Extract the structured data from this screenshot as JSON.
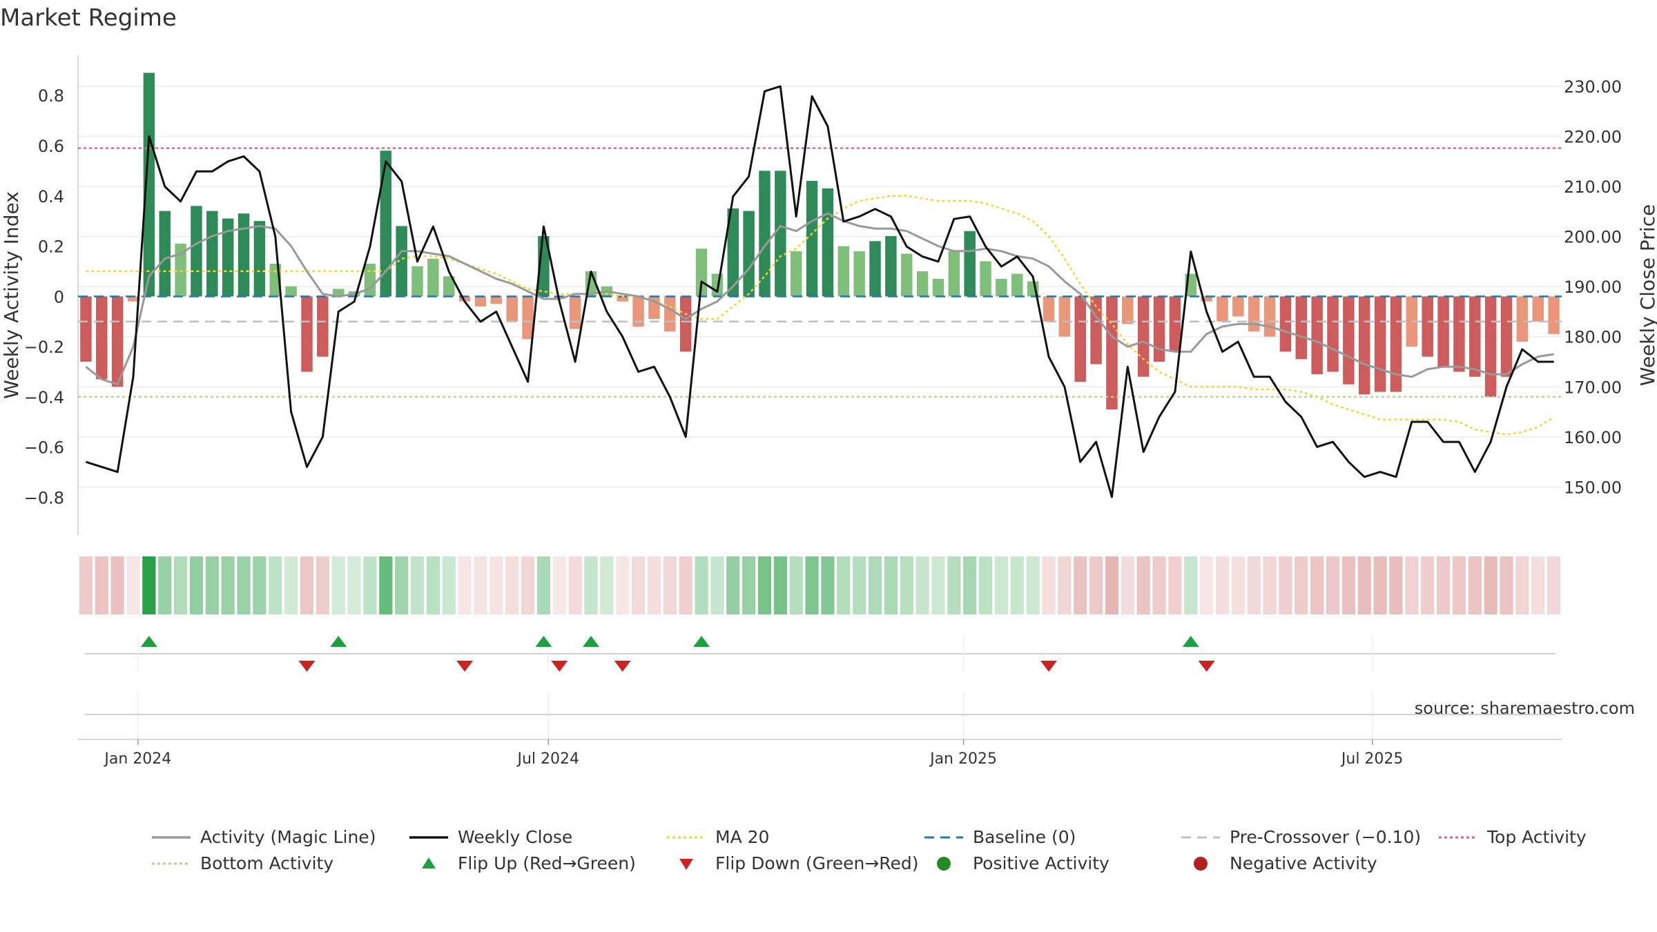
{
  "title": "Market Regime",
  "source": "source: sharemaestro.com",
  "colors": {
    "dark_green": "#2e8b57",
    "light_green": "#7fbf7b",
    "dark_red": "#cd5c5c",
    "light_red": "#e9967a",
    "magic": "#999999",
    "close": "#111111",
    "ma": "#f1d53a",
    "baseline": "#1f77b4",
    "pre": "#c0c0c0",
    "top": "#e0607e",
    "bottom": "#a8dd80",
    "flip_up": "#1fa040",
    "flip_down": "#cc2222"
  },
  "chart_data": {
    "type": "combo",
    "title": "Market Regime",
    "ylabel_left": "Weekly Activity Index",
    "ylabel_right": "Weekly Close Price",
    "y_left_range": [
      -0.95,
      0.96
    ],
    "y_right_range": [
      140.4,
      236.2
    ],
    "y_left_ticks": [
      {
        "v": 0.8,
        "label": "0.8"
      },
      {
        "v": 0.6,
        "label": "0.6"
      },
      {
        "v": 0.4,
        "label": "0.4"
      },
      {
        "v": 0.2,
        "label": "0.2"
      },
      {
        "v": 0,
        "label": "0"
      },
      {
        "v": -0.2,
        "label": "−0.2"
      },
      {
        "v": -0.4,
        "label": "−0.4"
      },
      {
        "v": -0.6,
        "label": "−0.6"
      },
      {
        "v": -0.8,
        "label": "−0.8"
      }
    ],
    "y_right_ticks": [
      {
        "v": 230,
        "label": "230.00"
      },
      {
        "v": 220,
        "label": "220.00"
      },
      {
        "v": 210,
        "label": "210.00"
      },
      {
        "v": 200,
        "label": "200.00"
      },
      {
        "v": 190,
        "label": "190.00"
      },
      {
        "v": 180,
        "label": "180.00"
      },
      {
        "v": 170,
        "label": "170.00"
      },
      {
        "v": 160,
        "label": "160.00"
      },
      {
        "v": 150,
        "label": "150.00"
      }
    ],
    "x_ticks": [
      {
        "week": 3.3,
        "label": "Jan 2024"
      },
      {
        "week": 29.3,
        "label": "Jul 2024"
      },
      {
        "week": 55.6,
        "label": "Jan 2025"
      },
      {
        "week": 81.5,
        "label": "Jul 2025"
      }
    ],
    "weeks": 94,
    "activity": [
      -0.26,
      -0.33,
      -0.36,
      -0.02,
      0.89,
      0.34,
      0.21,
      0.36,
      0.34,
      0.31,
      0.33,
      0.3,
      0.13,
      0.04,
      -0.3,
      -0.24,
      0.03,
      0.02,
      0.13,
      0.58,
      0.28,
      0.12,
      0.15,
      0.08,
      -0.02,
      -0.04,
      -0.03,
      -0.1,
      -0.17,
      0.24,
      -0.01,
      -0.13,
      0.1,
      0.04,
      -0.02,
      -0.12,
      -0.09,
      -0.14,
      -0.22,
      0.19,
      0.09,
      0.35,
      0.34,
      0.5,
      0.5,
      0.18,
      0.46,
      0.43,
      0.2,
      0.18,
      0.22,
      0.24,
      0.17,
      0.1,
      0.07,
      0.18,
      0.26,
      0.14,
      0.07,
      0.09,
      0.06,
      -0.1,
      -0.16,
      -0.34,
      -0.27,
      -0.45,
      -0.11,
      -0.32,
      -0.26,
      -0.22,
      0.09,
      -0.02,
      -0.1,
      -0.08,
      -0.14,
      -0.16,
      -0.22,
      -0.25,
      -0.31,
      -0.3,
      -0.35,
      -0.39,
      -0.38,
      -0.38,
      -0.2,
      -0.24,
      -0.28,
      -0.3,
      -0.32,
      -0.4,
      -0.32,
      -0.18,
      -0.1,
      -0.15
    ],
    "magic_line": [
      -0.28,
      -0.33,
      -0.35,
      -0.2,
      0.08,
      0.15,
      0.17,
      0.21,
      0.24,
      0.26,
      0.27,
      0.28,
      0.27,
      0.2,
      0.1,
      0.01,
      0.0,
      0.01,
      0.03,
      0.1,
      0.18,
      0.18,
      0.17,
      0.16,
      0.13,
      0.1,
      0.07,
      0.05,
      0.02,
      -0.01,
      -0.01,
      0.01,
      0.01,
      0.02,
      0.01,
      0.0,
      -0.02,
      -0.05,
      -0.09,
      -0.05,
      -0.02,
      0.04,
      0.11,
      0.2,
      0.28,
      0.26,
      0.3,
      0.33,
      0.3,
      0.28,
      0.27,
      0.27,
      0.26,
      0.23,
      0.2,
      0.18,
      0.18,
      0.19,
      0.18,
      0.16,
      0.15,
      0.12,
      0.06,
      0.01,
      -0.08,
      -0.16,
      -0.2,
      -0.18,
      -0.21,
      -0.22,
      -0.22,
      -0.15,
      -0.12,
      -0.11,
      -0.11,
      -0.12,
      -0.14,
      -0.16,
      -0.18,
      -0.21,
      -0.24,
      -0.27,
      -0.29,
      -0.31,
      -0.32,
      -0.29,
      -0.28,
      -0.28,
      -0.29,
      -0.31,
      -0.31,
      -0.27,
      -0.24,
      -0.23
    ],
    "ma20": [
      0.1,
      0.1,
      0.1,
      0.1,
      0.1,
      0.1,
      0.1,
      0.1,
      0.1,
      0.1,
      0.1,
      0.1,
      0.1,
      0.1,
      0.1,
      0.1,
      0.1,
      0.1,
      0.1,
      0.1,
      0.15,
      0.16,
      0.16,
      0.15,
      0.13,
      0.11,
      0.09,
      0.06,
      0.03,
      0.02,
      0.01,
      0.01,
      0.01,
      0.01,
      0.0,
      0.0,
      -0.02,
      -0.04,
      -0.07,
      -0.09,
      -0.09,
      -0.04,
      0.01,
      0.08,
      0.16,
      0.19,
      0.25,
      0.31,
      0.35,
      0.38,
      0.39,
      0.4,
      0.4,
      0.39,
      0.38,
      0.38,
      0.38,
      0.37,
      0.35,
      0.33,
      0.3,
      0.24,
      0.15,
      0.05,
      -0.04,
      -0.11,
      -0.19,
      -0.25,
      -0.3,
      -0.33,
      -0.36,
      -0.36,
      -0.36,
      -0.36,
      -0.37,
      -0.37,
      -0.37,
      -0.38,
      -0.4,
      -0.43,
      -0.45,
      -0.47,
      -0.49,
      -0.49,
      -0.49,
      -0.49,
      -0.49,
      -0.5,
      -0.53,
      -0.54,
      -0.55,
      -0.54,
      -0.52,
      -0.48
    ],
    "close": [
      155.0,
      154.0,
      153.0,
      172.0,
      220.0,
      210.0,
      207.0,
      213.0,
      213.0,
      215.0,
      216.0,
      213.0,
      200.0,
      165.0,
      154.0,
      160.0,
      185.0,
      187.0,
      198.0,
      215.0,
      211.0,
      195.0,
      202.0,
      193.0,
      187.0,
      183.0,
      185.0,
      178.0,
      171.0,
      202.0,
      187.0,
      175.0,
      193.0,
      185.0,
      180.0,
      173.0,
      174.0,
      168.0,
      160.0,
      191.0,
      189.0,
      208.0,
      212.0,
      229.0,
      230.0,
      204.0,
      228.0,
      222.0,
      203.0,
      204.0,
      205.5,
      204.0,
      198.0,
      196.0,
      195.0,
      203.5,
      204.0,
      198.0,
      194.0,
      196.0,
      192.0,
      176.0,
      170.0,
      155.0,
      159.0,
      148.0,
      174.0,
      157.0,
      164.0,
      169.0,
      197.0,
      185.0,
      177.0,
      179.0,
      172.0,
      172.0,
      167.0,
      164.0,
      158.0,
      159.0,
      155.0,
      152.0,
      153.0,
      152.0,
      163.0,
      163.0,
      159.0,
      159.0,
      153.0,
      159.0,
      170.0,
      177.5,
      175.0,
      175.0
    ],
    "reference_lines": {
      "top": 0.59,
      "bottom": -0.4,
      "baseline": 0,
      "pre_crossover": -0.1
    },
    "flip_up_weeks": [
      4,
      16,
      29,
      32,
      39,
      70
    ],
    "flip_down_weeks": [
      14,
      24,
      30,
      34,
      61,
      71
    ]
  },
  "legend": {
    "row1": [
      "Activity (Magic Line)",
      "Weekly Close",
      "MA 20",
      "Baseline (0)",
      "Pre-Crossover (−0.10)",
      "Top Activity"
    ],
    "row2": [
      "Bottom Activity",
      "Flip Up (Red→Green)",
      "Flip Down (Green→Red)",
      "Positive Activity",
      "Negative Activity"
    ]
  }
}
